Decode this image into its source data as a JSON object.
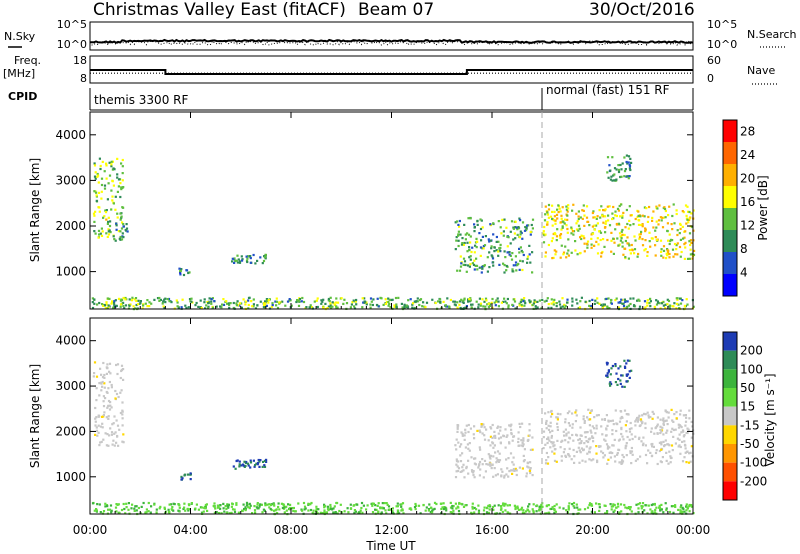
{
  "header": {
    "title": "Christmas Valley East (fitACF)",
    "beam": "Beam 07",
    "date": "30/Oct/2016"
  },
  "sky_panel": {
    "left_label": "N.Sky",
    "right_label": "N.Search",
    "left_ticks": [
      "10^5",
      "10^0"
    ],
    "right_ticks": [
      "10^5",
      "10^0"
    ]
  },
  "freq_panel": {
    "left_label": "Freq. [MHz]",
    "right_label": "Nave",
    "left_ticks": [
      "18",
      "8"
    ],
    "right_ticks": [
      "60",
      "0"
    ],
    "freq_steps": [
      {
        "t0": 0,
        "t1": 3,
        "value": 13.0
      },
      {
        "t0": 3,
        "t1": 15,
        "value": 10.5
      },
      {
        "t0": 15,
        "t1": 24,
        "value": 13.0
      }
    ],
    "nave_level": 11.0
  },
  "cpid": {
    "label": "CPID",
    "modes": [
      {
        "text": "themis 3300 RF",
        "start_hour": 0
      },
      {
        "text": "normal (fast) 151 RF",
        "start_hour": 18
      }
    ]
  },
  "chart_data": [
    {
      "type": "heatmap",
      "name": "power",
      "ylabel": "Slant Range [km]",
      "xlabel": "Time UT",
      "ylim": [
        180,
        4500
      ],
      "xlim": [
        0,
        24
      ],
      "yticks": [
        1000,
        2000,
        3000,
        4000
      ],
      "xticks": [
        "00:00",
        "04:00",
        "08:00",
        "12:00",
        "16:00",
        "20:00",
        "00:00"
      ],
      "colorbar": {
        "label": "Power [dB]",
        "ticks": [
          4,
          8,
          12,
          16,
          20,
          24,
          28
        ],
        "range": [
          0,
          30
        ],
        "colors": [
          "#0000ff",
          "#2050c8",
          "#2e8b57",
          "#5fbf3f",
          "#ffff00",
          "#ffb000",
          "#ff6600",
          "#ff0000"
        ]
      },
      "echo_regions": [
        {
          "t": [
            0.1,
            1.3
          ],
          "r": [
            1700,
            3550
          ],
          "level": 14
        },
        {
          "t": [
            1.0,
            1.5
          ],
          "r": [
            1700,
            2100
          ],
          "level": 9
        },
        {
          "t": [
            3.5,
            4.0
          ],
          "r": [
            950,
            1100
          ],
          "level": 8
        },
        {
          "t": [
            5.6,
            7.0
          ],
          "r": [
            1200,
            1400
          ],
          "level": 9
        },
        {
          "t": [
            14.5,
            17.6
          ],
          "r": [
            1000,
            2200
          ],
          "level": 11
        },
        {
          "t": [
            18.0,
            24.0
          ],
          "r": [
            1300,
            2500
          ],
          "level": 17
        },
        {
          "t": [
            20.5,
            21.5
          ],
          "r": [
            3000,
            3600
          ],
          "level": 10
        },
        {
          "t": [
            0.0,
            24.0
          ],
          "r": [
            180,
            450
          ],
          "level": 12
        }
      ],
      "mode_change_hour": 18
    },
    {
      "type": "heatmap",
      "name": "velocity",
      "ylabel": "Slant Range [km]",
      "xlabel": "Time UT",
      "ylim": [
        180,
        4500
      ],
      "xlim": [
        0,
        24
      ],
      "yticks": [
        1000,
        2000,
        3000,
        4000
      ],
      "xticks": [
        "00:00",
        "04:00",
        "08:00",
        "12:00",
        "16:00",
        "20:00",
        "00:00"
      ],
      "colorbar": {
        "label": "Velocity [m s⁻¹]",
        "ticks": [
          "200",
          "100",
          "50",
          "15",
          "-15",
          "-50",
          "-100",
          "-200"
        ],
        "colors": [
          "#1e3cb4",
          "#2e8b57",
          "#3cb43c",
          "#64dc3c",
          "#c8c8c8",
          "#ffd700",
          "#ff9600",
          "#ff5000",
          "#ff0000"
        ]
      },
      "echo_regions": [
        {
          "t": [
            0.1,
            1.3
          ],
          "r": [
            1700,
            3550
          ],
          "velocity": 0
        },
        {
          "t": [
            3.5,
            4.0
          ],
          "r": [
            950,
            1100
          ],
          "velocity": 150
        },
        {
          "t": [
            5.6,
            7.0
          ],
          "r": [
            1200,
            1400
          ],
          "velocity": 150
        },
        {
          "t": [
            14.5,
            17.6
          ],
          "r": [
            1000,
            2200
          ],
          "velocity": 0
        },
        {
          "t": [
            18.0,
            24.0
          ],
          "r": [
            1300,
            2500
          ],
          "velocity": 0
        },
        {
          "t": [
            20.5,
            21.5
          ],
          "r": [
            3000,
            3600
          ],
          "velocity": 150
        },
        {
          "t": [
            0.0,
            24.0
          ],
          "r": [
            180,
            450
          ],
          "velocity": 40
        }
      ],
      "mode_change_hour": 18
    }
  ]
}
